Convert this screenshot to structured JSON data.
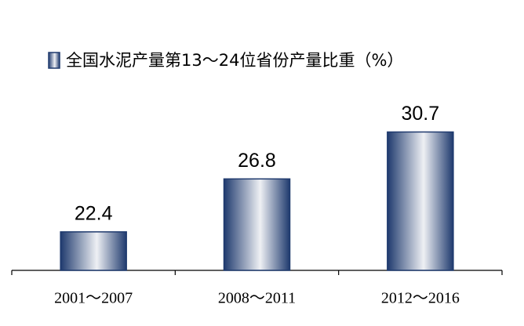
{
  "chart_data": {
    "type": "bar",
    "categories": [
      "2001～2007",
      "2008～2011",
      "2012～2016"
    ],
    "series": [
      {
        "name": "全国水泥产量第13～24位省份产量比重（%）",
        "color": "#1f3a6e",
        "values": [
          22.4,
          26.8,
          30.7
        ]
      }
    ],
    "ylim": [
      19.2,
      31.9
    ]
  }
}
